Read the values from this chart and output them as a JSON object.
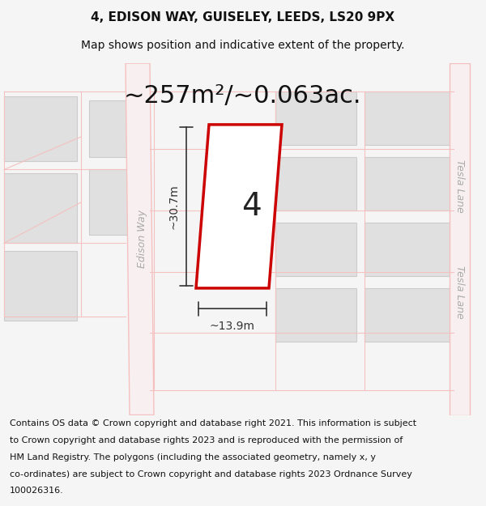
{
  "title_line1": "4, EDISON WAY, GUISELEY, LEEDS, LS20 9PX",
  "title_line2": "Map shows position and indicative extent of the property.",
  "area_text": "~257m²/~0.063ac.",
  "dim_width": "~13.9m",
  "dim_height": "~30.7m",
  "plot_number": "4",
  "footer_text": "Contains OS data © Crown copyright and database right 2021. This information is subject to Crown copyright and database rights 2023 and is reproduced with the permission of HM Land Registry. The polygons (including the associated geometry, namely x, y co-ordinates) are subject to Crown copyright and database rights 2023 Ordnance Survey 100026316.",
  "bg_color": "#f5f5f5",
  "map_bg": "#ffffff",
  "road_color": "#f5c0c0",
  "road_fill": "#f0d0d0",
  "building_fill": "#e0e0e0",
  "building_edge": "#cccccc",
  "plot_edge": "#cc0000",
  "dim_color": "#333333",
  "street_label_color": "#aaaaaa",
  "title_fontsize": 11,
  "subtitle_fontsize": 10,
  "area_fontsize": 22,
  "plot_num_fontsize": 28,
  "dim_fontsize": 10,
  "footer_fontsize": 8
}
